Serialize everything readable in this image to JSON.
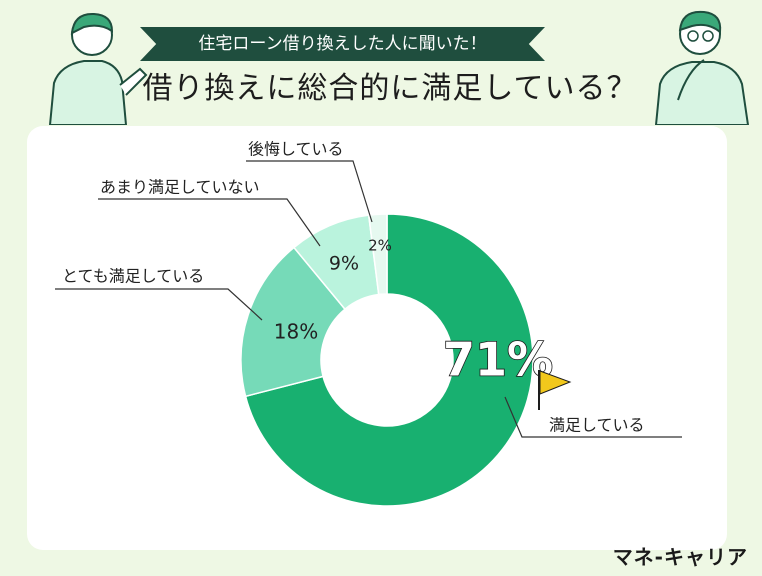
{
  "header": {
    "banner": "住宅ローン借り換えした人に聞いた！",
    "title": "借り換えに総合的に満足している？"
  },
  "brand": {
    "logo": "マネ-キャリア"
  },
  "colors": {
    "background": "#eef8e4",
    "banner": "#1f4e3e",
    "flag": "#f2c81c"
  },
  "icons": [
    "person-pointing-icon",
    "person-thinking-icon",
    "flag-icon"
  ],
  "chart_data": {
    "type": "donut",
    "categories": [
      "満足している",
      "とても満足している",
      "あまり満足していない",
      "後悔している"
    ],
    "values": [
      71,
      18,
      9,
      2
    ],
    "value_labels": [
      "71%",
      "18%",
      "9%",
      "2%"
    ],
    "colors": [
      "#18b070",
      "#76dab8",
      "#baf3dd",
      "#e6f9f0"
    ]
  }
}
